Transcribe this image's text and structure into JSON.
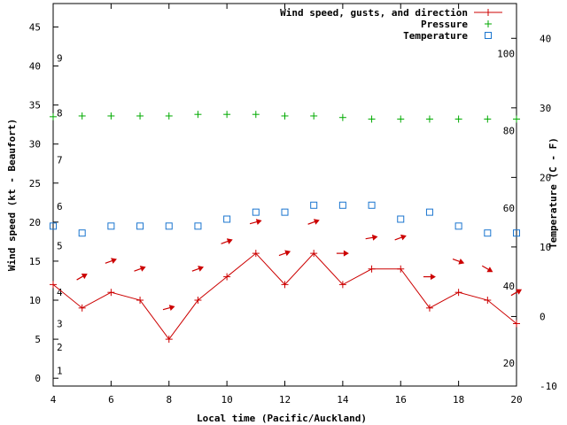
{
  "chart_data": {
    "type": "line",
    "xlabel": "Local time (Pacific/Auckland)",
    "ylabel_left": "Wind speed (kt - Beaufort)",
    "ylabel_right": "Temperature (C - F)",
    "xlim": [
      4,
      20
    ],
    "ylim_left": [
      -1,
      48
    ],
    "ylim_right": [
      -10,
      45
    ],
    "x_ticks": [
      "4",
      "6",
      "8",
      "10",
      "12",
      "14",
      "16",
      "18",
      "20"
    ],
    "y_left_ticks": [
      "0",
      "5",
      "10",
      "15",
      "20",
      "25",
      "30",
      "35",
      "40",
      "45"
    ],
    "y_right_ticks": [
      "-10",
      "0",
      "10",
      "20",
      "30",
      "40"
    ],
    "beaufort_ticks": [
      {
        "label": "1",
        "y": 1
      },
      {
        "label": "2",
        "y": 4
      },
      {
        "label": "3",
        "y": 7
      },
      {
        "label": "4",
        "y": 11
      },
      {
        "label": "5",
        "y": 17
      },
      {
        "label": "6",
        "y": 22
      },
      {
        "label": "7",
        "y": 28
      },
      {
        "label": "8",
        "y": 34
      },
      {
        "label": "9",
        "y": 41
      }
    ],
    "fahrenheit_ticks": [
      {
        "label": "20",
        "y": -6.7
      },
      {
        "label": "40",
        "y": 4.4
      },
      {
        "label": "60",
        "y": 15.6
      },
      {
        "label": "80",
        "y": 26.7
      },
      {
        "label": "100",
        "y": 37.8
      }
    ],
    "series": [
      {
        "name": "Wind speed, gusts, and direction",
        "color": "#cc0000",
        "axis": "left",
        "x": [
          4,
          5,
          6,
          7,
          8,
          9,
          10,
          11,
          12,
          13,
          14,
          15,
          16,
          17,
          18,
          19,
          20
        ],
        "values": [
          12,
          9,
          11,
          10,
          5,
          10,
          13,
          16,
          12,
          16,
          12,
          14,
          14,
          9,
          11,
          10,
          7
        ]
      },
      {
        "name": "Pressure",
        "color": "#00aa00",
        "axis": "left",
        "x": [
          4,
          5,
          6,
          7,
          8,
          9,
          10,
          11,
          12,
          13,
          14,
          15,
          16,
          17,
          18,
          19,
          20
        ],
        "values": [
          33.5,
          33.6,
          33.6,
          33.6,
          33.6,
          33.8,
          33.8,
          33.8,
          33.6,
          33.6,
          33.4,
          33.2,
          33.2,
          33.2,
          33.2,
          33.2,
          33.2
        ]
      },
      {
        "name": "Temperature",
        "color": "#1a75cf",
        "axis": "right",
        "x": [
          4,
          5,
          6,
          7,
          8,
          9,
          10,
          11,
          12,
          13,
          14,
          15,
          16,
          17,
          18,
          19,
          20
        ],
        "values": [
          13,
          12,
          13,
          13,
          13,
          13,
          14,
          15,
          15,
          16,
          16,
          16,
          14,
          15,
          13,
          12,
          12
        ]
      }
    ],
    "wind_arrows": [
      {
        "x": 5,
        "y": 13,
        "dir": 30
      },
      {
        "x": 6,
        "y": 15,
        "dir": 20
      },
      {
        "x": 7,
        "y": 14,
        "dir": 20
      },
      {
        "x": 8,
        "y": 9,
        "dir": 15
      },
      {
        "x": 9,
        "y": 14,
        "dir": 20
      },
      {
        "x": 10,
        "y": 17.5,
        "dir": 20
      },
      {
        "x": 11,
        "y": 20,
        "dir": 15
      },
      {
        "x": 12,
        "y": 16,
        "dir": 20
      },
      {
        "x": 13,
        "y": 20,
        "dir": 20
      },
      {
        "x": 14,
        "y": 16,
        "dir": 0
      },
      {
        "x": 15,
        "y": 18,
        "dir": 10
      },
      {
        "x": 16,
        "y": 18,
        "dir": 20
      },
      {
        "x": 17,
        "y": 13,
        "dir": 0
      },
      {
        "x": 18,
        "y": 15,
        "dir": -20
      },
      {
        "x": 19,
        "y": 14,
        "dir": -30
      },
      {
        "x": 20,
        "y": 11,
        "dir": 30
      }
    ],
    "legend_position": "top-right"
  }
}
